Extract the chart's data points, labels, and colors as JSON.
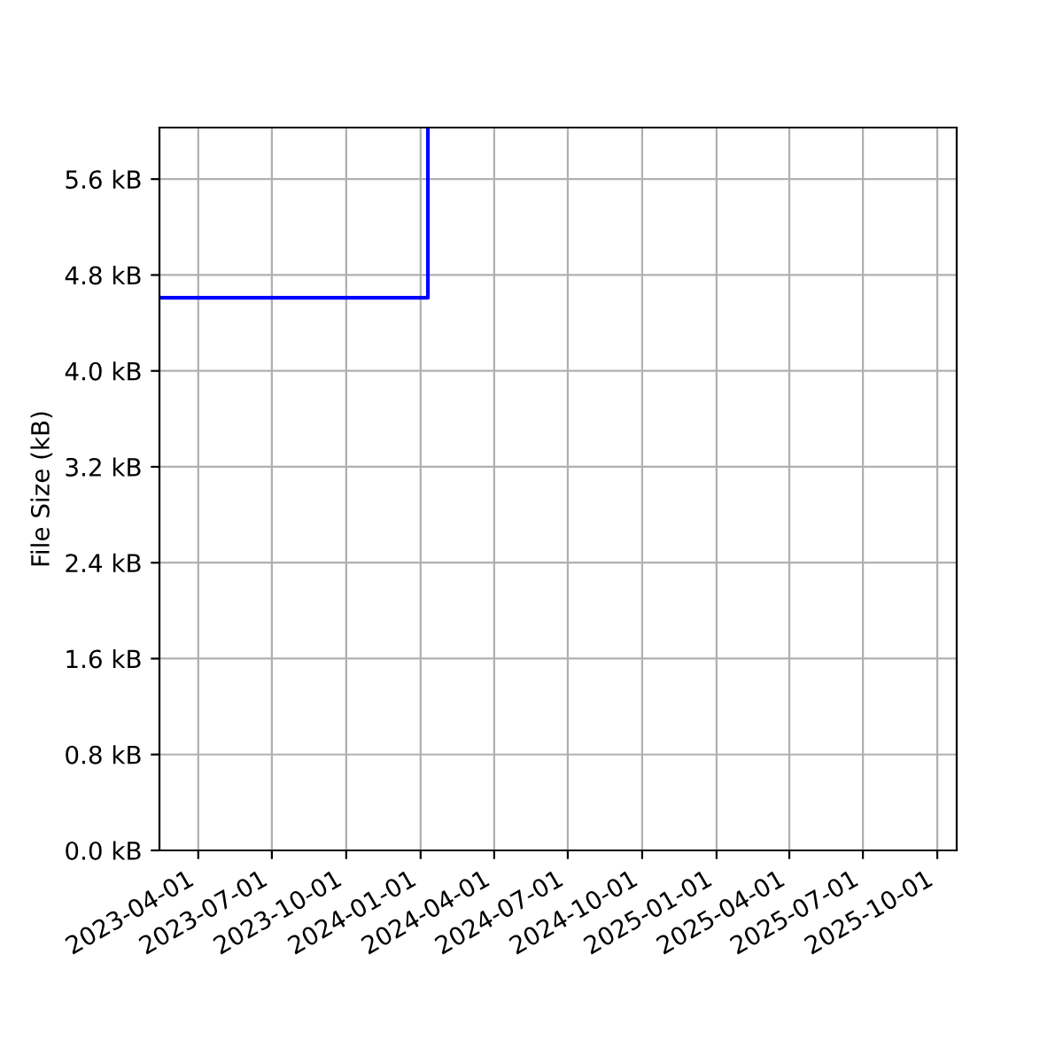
{
  "chart_data": {
    "type": "step",
    "ylabel": "File Size (kB)",
    "x": [
      "2023-02-12",
      "2024-01-10"
    ],
    "series": [
      {
        "color": "#0000ff",
        "values": [
          4.61,
          6.03
        ]
      }
    ],
    "xlim": [
      "2023-02-12",
      "2025-10-25"
    ],
    "xticks": [
      "2023-04-01",
      "2023-07-01",
      "2023-10-01",
      "2024-01-01",
      "2024-04-01",
      "2024-07-01",
      "2024-10-01",
      "2025-01-01",
      "2025-04-01",
      "2025-07-01",
      "2025-10-01"
    ],
    "ylim": [
      0,
      6.03
    ],
    "yticks": [
      {
        "value": 0,
        "label": "0.0 kB"
      },
      {
        "value": 0.8,
        "label": "0.8 kB"
      },
      {
        "value": 1.6,
        "label": "1.6 kB"
      },
      {
        "value": 2.4,
        "label": "2.4 kB"
      },
      {
        "value": 3.2,
        "label": "3.2 kB"
      },
      {
        "value": 4.0,
        "label": "4.0 kB"
      },
      {
        "value": 4.8,
        "label": "4.8 kB"
      },
      {
        "value": 5.6,
        "label": "5.6 kB"
      }
    ],
    "grid": true
  }
}
